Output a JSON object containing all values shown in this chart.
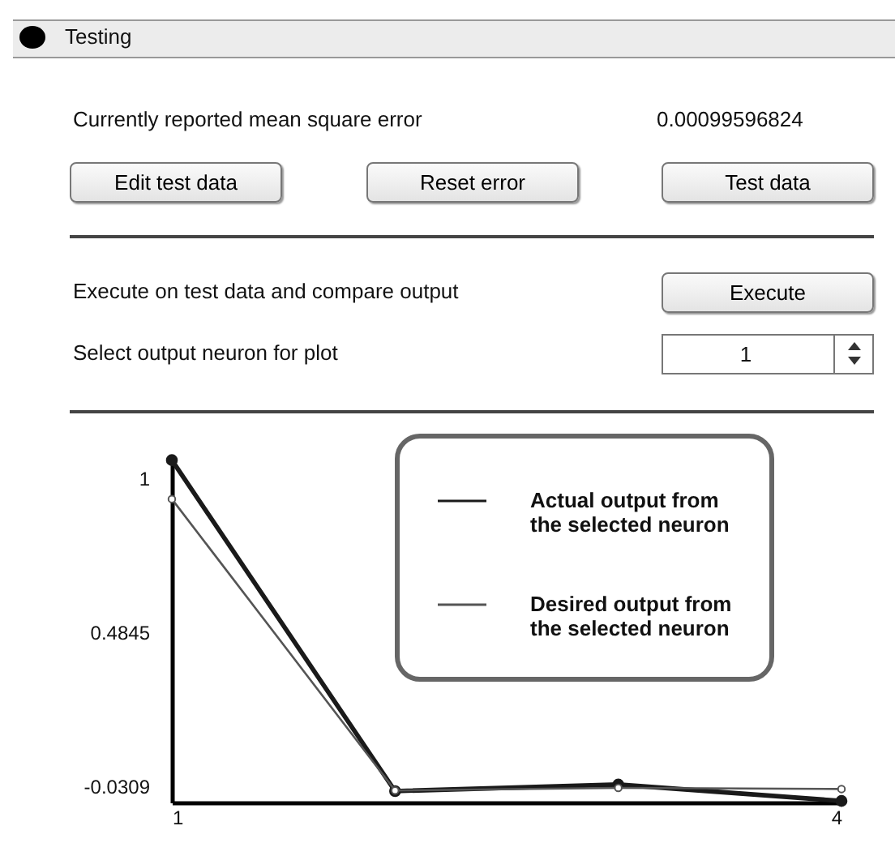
{
  "chart_data": {
    "type": "line",
    "title": "Testing",
    "annotations": [
      "Currently reported mean square error",
      "0.00099596824",
      "Edit test data",
      "Reset error",
      "Test data",
      "Execute on test data and compare output",
      "Execute",
      "Select output neuron for plot",
      "1"
    ],
    "x": [
      1,
      2,
      3,
      4
    ],
    "series": [
      {
        "name": "Actual output from the selected neuron",
        "color": "#1a1a1a",
        "values": [
          1.06,
          -0.047,
          -0.025,
          -0.08
        ]
      },
      {
        "name": "Desired output from the selected neuron",
        "color": "#555555",
        "values": [
          0.93,
          -0.045,
          -0.036,
          -0.04
        ]
      }
    ],
    "xlim": [
      1,
      4
    ],
    "xticks": [
      1,
      4
    ],
    "ylim": [
      -0.085,
      1.07
    ],
    "yticks": [
      -0.0309,
      0.4845,
      1
    ],
    "marker": "circle",
    "legend": "top right",
    "grid": false
  }
}
